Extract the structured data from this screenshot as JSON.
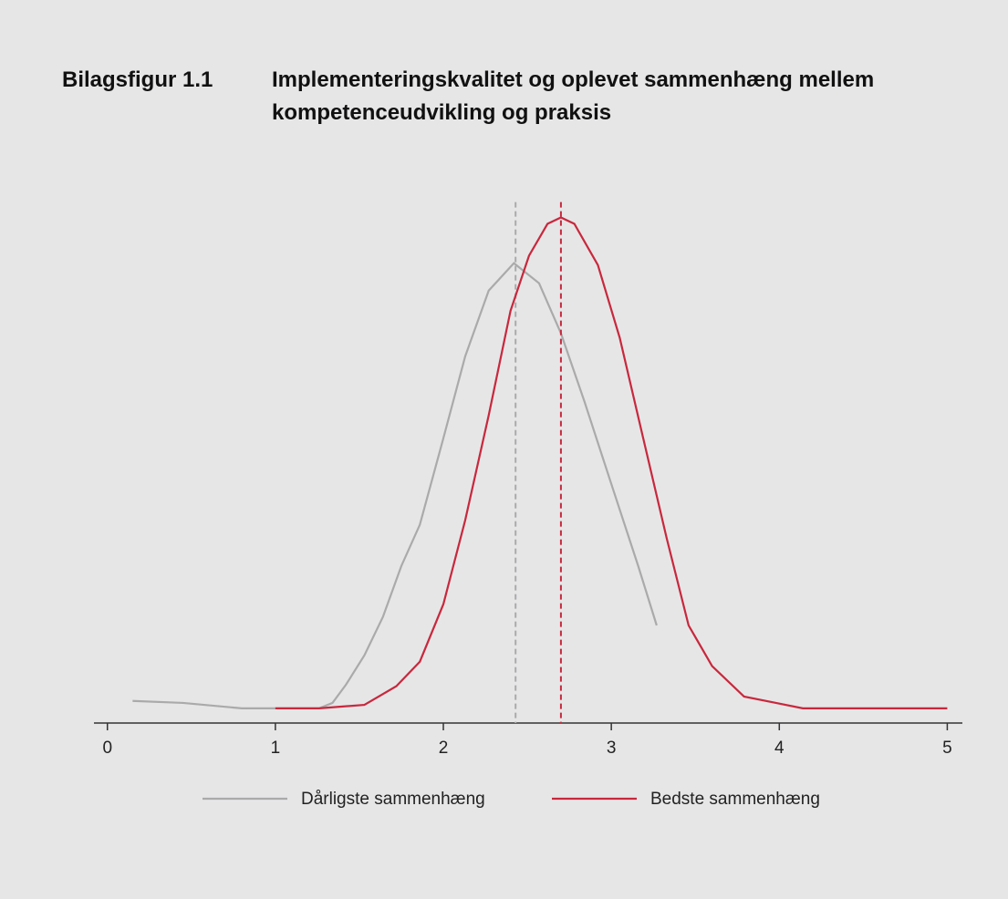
{
  "chart_data": {
    "type": "line",
    "figure_label": "Bilagsfigur 1.1",
    "title": "Implementeringskvalitet og oplevet sammenhæng mellem kompetenceudvikling og praksis",
    "xlim": [
      -0.08,
      5.09
    ],
    "ylim": [
      -0.03,
      1.05
    ],
    "xticks": [
      0,
      1,
      2,
      3,
      4,
      5
    ],
    "series": [
      {
        "name": "Dårligste sammenhæng",
        "color": "#aaaaaa",
        "x": [
          0.15,
          0.45,
          0.8,
          1.0,
          1.26,
          1.34,
          1.42,
          1.53,
          1.64,
          1.75,
          1.86,
          2.0,
          2.13,
          2.27,
          2.42,
          2.57,
          2.7,
          2.84,
          3.0,
          3.16,
          3.27
        ],
        "values": [
          0.015,
          0.011,
          0,
          0,
          0,
          0.011,
          0.048,
          0.108,
          0.186,
          0.29,
          0.374,
          0.55,
          0.717,
          0.851,
          0.907,
          0.866,
          0.764,
          0.625,
          0.457,
          0.29,
          0.169
        ],
        "mean": 2.43
      },
      {
        "name": "Bedste sammenhæng",
        "color": "#c8283c",
        "x": [
          1.0,
          1.26,
          1.53,
          1.72,
          1.86,
          2.0,
          2.13,
          2.27,
          2.4,
          2.51,
          2.62,
          2.7,
          2.78,
          2.92,
          3.05,
          3.19,
          3.33,
          3.46,
          3.6,
          3.79,
          3.98,
          4.14,
          5.0
        ],
        "values": [
          0,
          0,
          0.007,
          0.045,
          0.095,
          0.212,
          0.383,
          0.597,
          0.81,
          0.922,
          0.987,
          1.0,
          0.987,
          0.903,
          0.755,
          0.55,
          0.346,
          0.169,
          0.086,
          0.024,
          0.011,
          0,
          0
        ],
        "mean": 2.7
      }
    ]
  }
}
